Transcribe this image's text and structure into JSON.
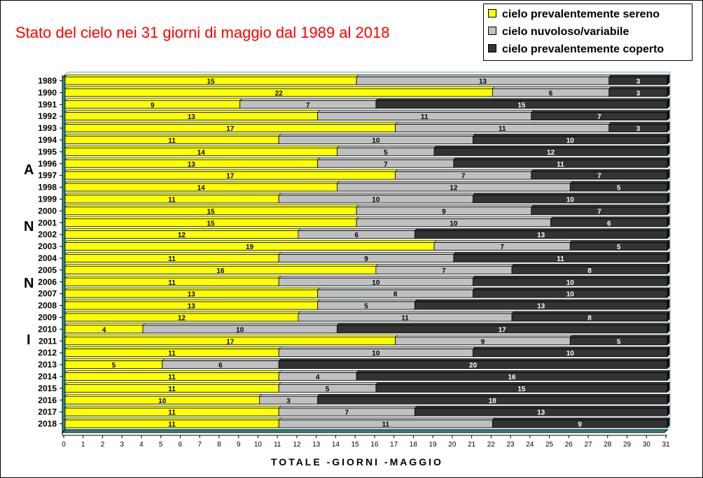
{
  "title": "Stato del cielo nei 31 giorni di maggio dal 1989 al 2018",
  "legend": [
    {
      "label": "cielo prevalentemente sereno",
      "color": "#ffff00"
    },
    {
      "label": "cielo nuvoloso/variabile",
      "color": "#c0c0c0"
    },
    {
      "label": "cielo prevalentemente coperto",
      "color": "#333333"
    }
  ],
  "ylabel_letters": [
    "A",
    "N",
    "N",
    "I"
  ],
  "chart_data": {
    "type": "bar",
    "orientation": "horizontal",
    "stacked": true,
    "title": "Stato del cielo nei 31 giorni di maggio dal 1989 al 2018",
    "xlabel": "TOTALE -GIORNI -MAGGIO",
    "ylabel": "ANNI",
    "xlim": [
      0,
      31
    ],
    "categories": [
      "1989",
      "1990",
      "1991",
      "1992",
      "1993",
      "1994",
      "1995",
      "1996",
      "1997",
      "1998",
      "1999",
      "2000",
      "2001",
      "2002",
      "2003",
      "2004",
      "2005",
      "2006",
      "2007",
      "2008",
      "2009",
      "2010",
      "2011",
      "2012",
      "2013",
      "2014",
      "2015",
      "2016",
      "2017",
      "2018"
    ],
    "series": [
      {
        "name": "cielo prevalentemente sereno",
        "color": "#ffff00",
        "values": [
          15,
          22,
          9,
          13,
          17,
          11,
          14,
          13,
          17,
          14,
          11,
          15,
          15,
          12,
          19,
          11,
          16,
          11,
          13,
          13,
          12,
          4,
          17,
          11,
          5,
          11,
          11,
          10,
          11,
          11
        ]
      },
      {
        "name": "cielo nuvoloso/variabile",
        "color": "#c0c0c0",
        "values": [
          13,
          6,
          7,
          11,
          11,
          10,
          5,
          7,
          7,
          12,
          10,
          9,
          10,
          6,
          7,
          9,
          7,
          10,
          8,
          5,
          11,
          10,
          9,
          10,
          6,
          4,
          5,
          3,
          7,
          11
        ]
      },
      {
        "name": "cielo prevalentemente coperto",
        "color": "#333333",
        "values": [
          3,
          3,
          15,
          7,
          3,
          10,
          12,
          11,
          7,
          5,
          10,
          7,
          6,
          13,
          5,
          11,
          8,
          10,
          10,
          13,
          8,
          17,
          5,
          10,
          20,
          16,
          15,
          18,
          13,
          9
        ]
      }
    ],
    "xticks": [
      "0",
      "1",
      "2",
      "3",
      "4",
      "5",
      "6",
      "7",
      "8",
      "9",
      "10",
      "11",
      "12",
      "13",
      "14",
      "15",
      "16",
      "17",
      "18",
      "19",
      "20",
      "21",
      "22",
      "23",
      "24",
      "25",
      "26",
      "27",
      "28",
      "29",
      "30",
      "31"
    ]
  }
}
